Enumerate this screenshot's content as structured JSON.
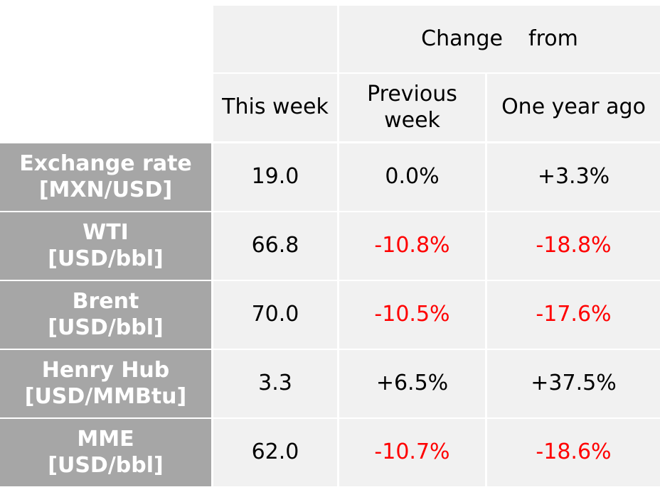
{
  "header": {
    "change_from_word1": "Change",
    "change_from_word2": "from",
    "this_week": "This week",
    "previous_week_line1": "Previous",
    "previous_week_line2": "week",
    "one_year_ago": "One year ago"
  },
  "rows": [
    {
      "name_line1": "Exchange rate",
      "name_line2": "[MXN/USD]",
      "this_week": "19.0",
      "prev_week": "0.0%",
      "prev_week_negative": false,
      "year_ago": "+3.3%",
      "year_ago_negative": false
    },
    {
      "name_line1": "WTI",
      "name_line2": "[USD/bbl]",
      "this_week": "66.8",
      "prev_week": "-10.8%",
      "prev_week_negative": true,
      "year_ago": "-18.8%",
      "year_ago_negative": true
    },
    {
      "name_line1": "Brent",
      "name_line2": "[USD/bbl]",
      "this_week": "70.0",
      "prev_week": "-10.5%",
      "prev_week_negative": true,
      "year_ago": "-17.6%",
      "year_ago_negative": true
    },
    {
      "name_line1": "Henry Hub",
      "name_line2": "[USD/MMBtu]",
      "this_week": "3.3",
      "prev_week": "+6.5%",
      "prev_week_negative": false,
      "year_ago": "+37.5%",
      "year_ago_negative": false
    },
    {
      "name_line1": "MME",
      "name_line2": "[USD/bbl]",
      "this_week": "62.0",
      "prev_week": "-10.7%",
      "prev_week_negative": true,
      "year_ago": "-18.6%",
      "year_ago_negative": true
    }
  ],
  "colors": {
    "negative": "#ff0000",
    "row_header_bg": "#a6a6a6",
    "cell_bg": "#f1f1f1"
  }
}
